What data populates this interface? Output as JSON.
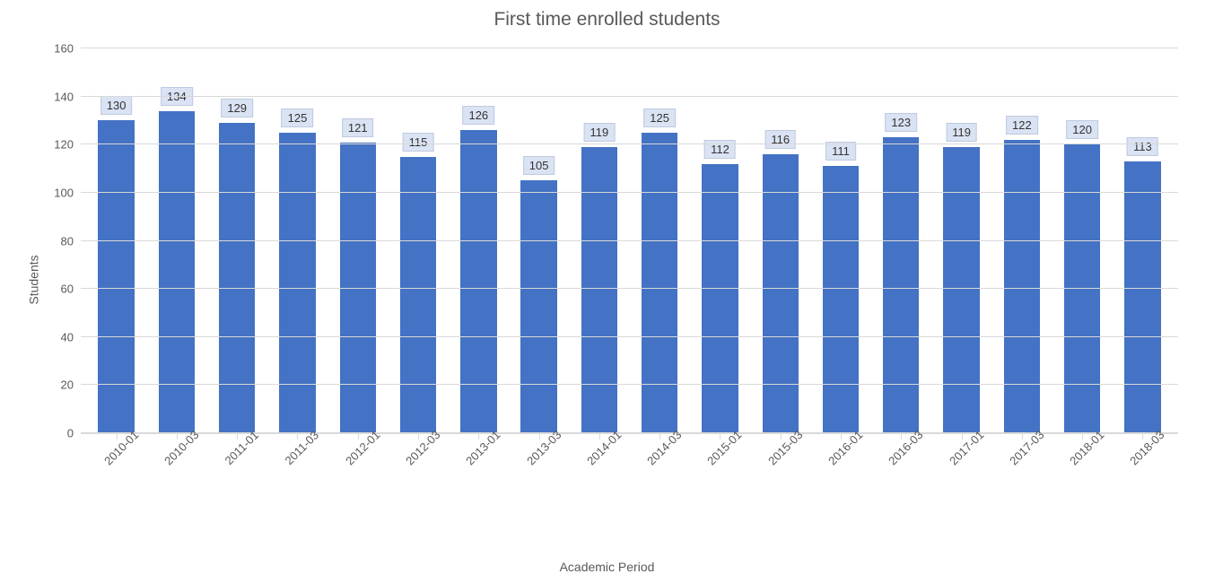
{
  "chart": {
    "type": "bar",
    "title": "First time enrolled students",
    "title_fontsize": 21,
    "title_color": "#595959",
    "ylabel": "Students",
    "xlabel": "Academic Period",
    "label_fontsize": 14,
    "label_color": "#595959",
    "ylim": [
      0,
      160
    ],
    "ytick_step": 20,
    "yticks": [
      0,
      20,
      40,
      60,
      80,
      100,
      120,
      140,
      160
    ],
    "grid_color": "#d9d9d9",
    "background_color": "#ffffff",
    "tick_label_color": "#595959",
    "tick_label_fontsize": 13,
    "bar_color": "#4472c4",
    "bar_width_ratio": 0.6,
    "data_label_bg": "#dae3f3",
    "data_label_border": "#bfc9e0",
    "data_label_color": "#333333",
    "categories": [
      "2010-01",
      "2010-03",
      "2011-01",
      "2011-03",
      "2012-01",
      "2012-03",
      "2013-01",
      "2013-03",
      "2014-01",
      "2014-03",
      "2015-01",
      "2015-03",
      "2016-01",
      "2016-03",
      "2017-01",
      "2017-03",
      "2018-01",
      "2018-03"
    ],
    "values": [
      130,
      134,
      129,
      125,
      121,
      115,
      126,
      105,
      119,
      125,
      112,
      116,
      111,
      123,
      119,
      122,
      120,
      113
    ],
    "x_tick_rotation_deg": -45
  }
}
